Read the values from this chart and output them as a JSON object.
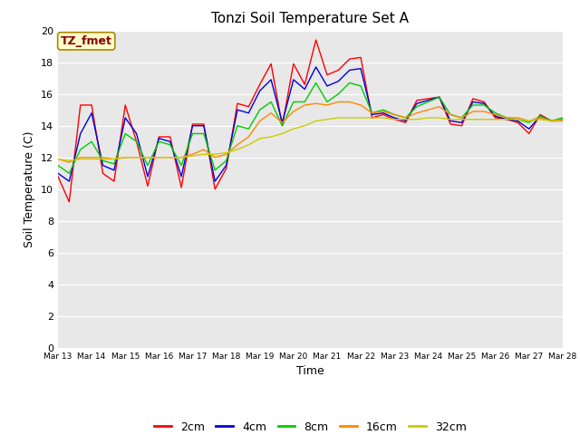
{
  "title": "Tonzi Soil Temperature Set A",
  "xlabel": "Time",
  "ylabel": "Soil Temperature (C)",
  "ylim": [
    0,
    20
  ],
  "annotation_label": "TZ_fmet",
  "plot_bg_color": "#e8e8e8",
  "fig_bg_color": "#ffffff",
  "grid_color": "#ffffff",
  "series": {
    "2cm": {
      "color": "#ff0000",
      "label": "2cm"
    },
    "4cm": {
      "color": "#0000dd",
      "label": "4cm"
    },
    "8cm": {
      "color": "#00cc00",
      "label": "8cm"
    },
    "16cm": {
      "color": "#ff8800",
      "label": "16cm"
    },
    "32cm": {
      "color": "#cccc00",
      "label": "32cm"
    }
  },
  "tick_labels": [
    "Mar 13",
    "Mar 14",
    "Mar 15",
    "Mar 16",
    "Mar 17",
    "Mar 18",
    "Mar 19",
    "Mar 20",
    "Mar 21",
    "Mar 22",
    "Mar 23",
    "Mar 24",
    "Mar 25",
    "Mar 26",
    "Mar 27",
    "Mar 28"
  ],
  "data_2cm": [
    10.8,
    9.2,
    15.3,
    15.3,
    11.0,
    10.5,
    15.3,
    13.0,
    10.2,
    13.3,
    13.3,
    10.1,
    14.1,
    14.1,
    10.0,
    11.3,
    15.4,
    15.2,
    16.6,
    17.9,
    14.0,
    17.9,
    16.6,
    19.4,
    17.2,
    17.5,
    18.2,
    18.3,
    14.5,
    14.7,
    14.4,
    14.2,
    15.6,
    15.7,
    15.8,
    14.1,
    14.0,
    15.7,
    15.5,
    14.5,
    14.4,
    14.2,
    13.5,
    14.7,
    14.3,
    14.3,
    14.5,
    14.5
  ],
  "data_4cm": [
    11.0,
    10.5,
    13.5,
    14.8,
    11.5,
    11.2,
    14.5,
    13.5,
    10.8,
    13.2,
    13.0,
    10.8,
    14.0,
    14.0,
    10.5,
    11.5,
    15.0,
    14.8,
    16.2,
    16.9,
    14.2,
    16.9,
    16.3,
    17.7,
    16.5,
    16.8,
    17.5,
    17.6,
    14.7,
    14.8,
    14.5,
    14.3,
    15.4,
    15.6,
    15.8,
    14.3,
    14.2,
    15.5,
    15.4,
    14.6,
    14.4,
    14.3,
    13.8,
    14.6,
    14.3,
    14.4,
    14.6,
    14.6
  ],
  "data_8cm": [
    11.5,
    11.0,
    12.5,
    13.0,
    11.8,
    11.6,
    13.5,
    13.0,
    11.5,
    13.0,
    12.8,
    11.5,
    13.5,
    13.5,
    11.2,
    11.8,
    14.0,
    13.8,
    15.0,
    15.5,
    14.0,
    15.5,
    15.5,
    16.7,
    15.5,
    16.0,
    16.7,
    16.5,
    14.8,
    15.0,
    14.7,
    14.5,
    15.2,
    15.5,
    15.8,
    14.7,
    14.5,
    15.3,
    15.3,
    14.8,
    14.5,
    14.4,
    14.2,
    14.6,
    14.3,
    14.5,
    14.6,
    14.7
  ],
  "data_16cm": [
    11.9,
    11.7,
    12.0,
    12.0,
    12.0,
    11.9,
    12.0,
    12.0,
    12.0,
    12.0,
    12.0,
    12.0,
    12.2,
    12.5,
    12.0,
    12.2,
    12.8,
    13.3,
    14.3,
    14.8,
    14.2,
    14.9,
    15.3,
    15.4,
    15.3,
    15.5,
    15.5,
    15.3,
    14.8,
    14.9,
    14.7,
    14.5,
    14.8,
    15.0,
    15.2,
    14.7,
    14.5,
    14.9,
    14.9,
    14.7,
    14.5,
    14.5,
    14.3,
    14.5,
    14.3,
    14.4,
    14.5,
    14.5
  ],
  "data_32cm": [
    11.9,
    11.8,
    11.9,
    11.9,
    11.9,
    11.9,
    12.0,
    12.0,
    12.0,
    12.0,
    12.0,
    12.0,
    12.1,
    12.2,
    12.2,
    12.3,
    12.5,
    12.8,
    13.2,
    13.3,
    13.5,
    13.8,
    14.0,
    14.3,
    14.4,
    14.5,
    14.5,
    14.5,
    14.5,
    14.5,
    14.4,
    14.4,
    14.4,
    14.5,
    14.5,
    14.4,
    14.4,
    14.4,
    14.4,
    14.4,
    14.4,
    14.4,
    14.3,
    14.4,
    14.3,
    14.3,
    14.4,
    14.4
  ]
}
